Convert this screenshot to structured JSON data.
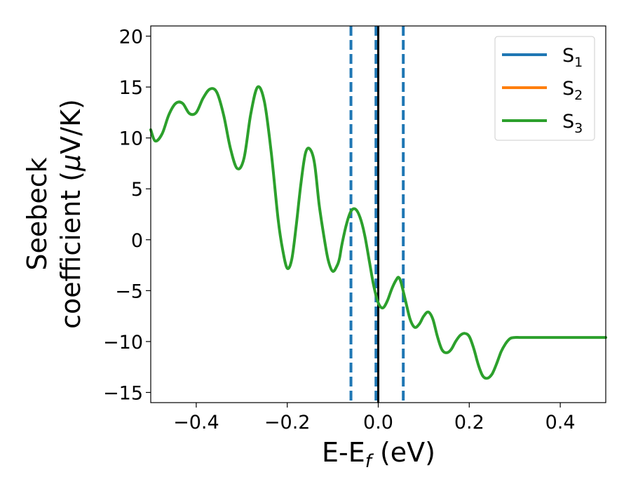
{
  "chart_data": {
    "type": "line",
    "xlabel": "E-E",
    "xlabel_sub": "f",
    "xlabel_unit": " (eV)",
    "ylabel_line1": "Seebeck",
    "ylabel_line2": "coefficient  (",
    "ylabel_mu": "μ",
    "ylabel_unit": "V/K)",
    "xlim": [
      -0.5,
      0.5
    ],
    "ylim": [
      -16,
      21
    ],
    "x_ticks": [
      -0.4,
      -0.2,
      0.0,
      0.2,
      0.4
    ],
    "x_tick_labels": [
      "−0.4",
      "−0.2",
      "0.0",
      "0.2",
      "0.4"
    ],
    "y_ticks": [
      -15,
      -10,
      -5,
      0,
      5,
      10,
      15,
      20
    ],
    "y_tick_labels": [
      "−15",
      "−10",
      "−5",
      "0",
      "5",
      "10",
      "15",
      "20"
    ],
    "grid": false,
    "legend_position": "top-right",
    "vlines": [
      {
        "x": -0.06,
        "style": "dashed",
        "color": "#1f77b4"
      },
      {
        "x": -0.005,
        "style": "dashed",
        "color": "#1f77b4"
      },
      {
        "x": 0.0,
        "style": "solid",
        "color": "#000000"
      },
      {
        "x": 0.055,
        "style": "dashed",
        "color": "#1f77b4"
      }
    ],
    "series": [
      {
        "name": "S",
        "sub": "1",
        "color": "#1f77b4",
        "visible": false
      },
      {
        "name": "S",
        "sub": "2",
        "color": "#ff7f0e",
        "visible": false
      },
      {
        "name": "S",
        "sub": "3",
        "color": "#2ca02c",
        "visible": true
      }
    ],
    "x": [
      -0.5,
      -0.49,
      -0.475,
      -0.46,
      -0.445,
      -0.43,
      -0.415,
      -0.4,
      -0.385,
      -0.37,
      -0.355,
      -0.34,
      -0.325,
      -0.31,
      -0.295,
      -0.28,
      -0.265,
      -0.25,
      -0.235,
      -0.22,
      -0.21,
      -0.2,
      -0.19,
      -0.18,
      -0.17,
      -0.16,
      -0.15,
      -0.14,
      -0.13,
      -0.12,
      -0.11,
      -0.1,
      -0.09,
      -0.085,
      -0.08,
      -0.07,
      -0.06,
      -0.05,
      -0.04,
      -0.03,
      -0.02,
      -0.01,
      0.0,
      0.01,
      0.02,
      0.03,
      0.04,
      0.045,
      0.05,
      0.06,
      0.07,
      0.08,
      0.09,
      0.1,
      0.11,
      0.12,
      0.13,
      0.14,
      0.15,
      0.16,
      0.17,
      0.18,
      0.19,
      0.2,
      0.21,
      0.22,
      0.23,
      0.24,
      0.25,
      0.26,
      0.27,
      0.28,
      0.29,
      0.3,
      0.31,
      0.32,
      0.33,
      0.34,
      0.35,
      0.36,
      0.37,
      0.38,
      0.39,
      0.4,
      0.41,
      0.42,
      0.43,
      0.44,
      0.45,
      0.46,
      0.47,
      0.48,
      0.49,
      0.5
    ],
    "y": [
      10.8,
      9.7,
      10.4,
      12.3,
      13.4,
      13.4,
      12.4,
      12.5,
      13.9,
      14.8,
      14.5,
      12.3,
      9.0,
      7.0,
      8.0,
      12.4,
      15.0,
      13.5,
      8.5,
      2.0,
      -1.0,
      -2.8,
      -1.9,
      1.5,
      5.5,
      8.5,
      8.9,
      7.5,
      3.5,
      0.5,
      -2.0,
      -3.1,
      -2.5,
      -1.8,
      -0.5,
      1.5,
      2.8,
      3.0,
      2.2,
      0.5,
      -2.0,
      -4.5,
      -6.2,
      -6.7,
      -6.0,
      -4.8,
      -3.9,
      -3.7,
      -4.2,
      -6.0,
      -7.8,
      -8.6,
      -8.3,
      -7.5,
      -7.1,
      -7.8,
      -9.5,
      -10.8,
      -11.1,
      -10.8,
      -10.0,
      -9.4,
      -9.2,
      -9.5,
      -10.7,
      -12.3,
      -13.4,
      -13.6,
      -13.2,
      -12.2,
      -11.0,
      -10.2,
      -9.7,
      -9.6,
      -9.6,
      -9.6,
      -9.6,
      -9.6,
      -9.6,
      -9.6,
      -9.6,
      -9.6,
      -9.6,
      -9.6,
      -9.6,
      -9.6,
      -9.6,
      -9.6,
      -9.6,
      -9.6,
      -9.6,
      -9.6,
      -9.6,
      -9.6
    ]
  }
}
